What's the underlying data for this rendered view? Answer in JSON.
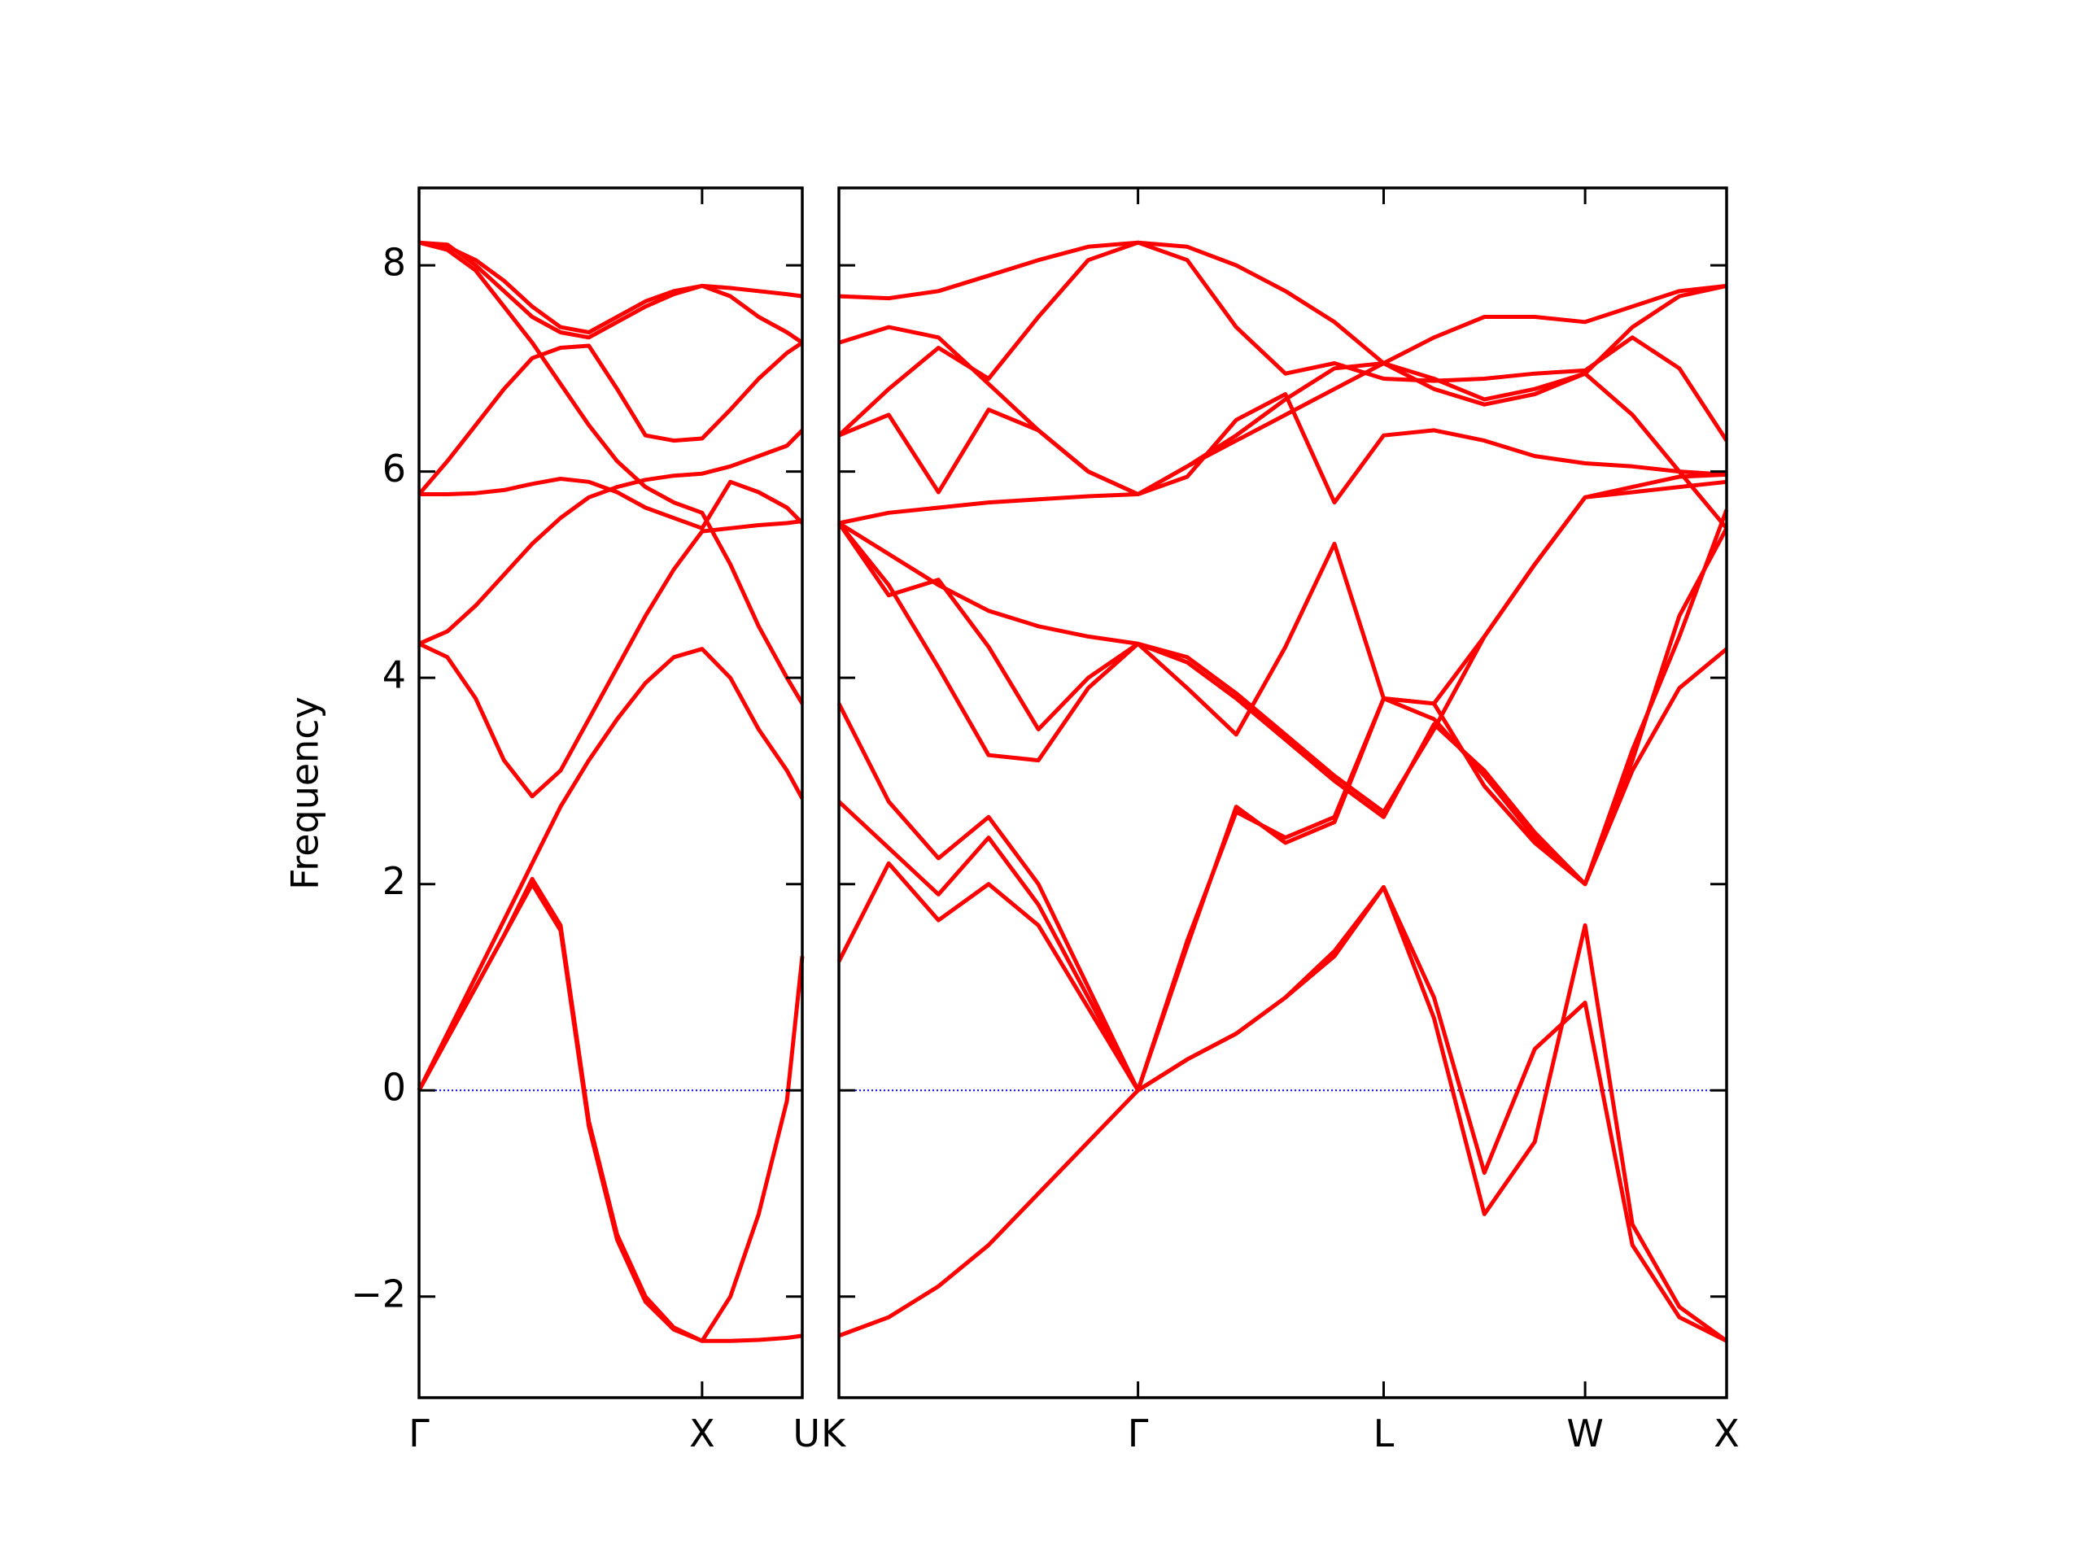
{
  "chart_data": [
    {
      "type": "line",
      "ylabel": "Frequency",
      "color": "#ff0000",
      "hline": 0,
      "hline_color": "#0000ff",
      "xlim": [
        0,
        1.354
      ],
      "xticks": [
        {
          "value": 0,
          "label": "Γ"
        },
        {
          "value": 1,
          "label": "X"
        },
        {
          "value": 1.354,
          "label": "U"
        }
      ],
      "ylim": [
        -2.98,
        8.75
      ],
      "yticks": [
        {
          "value": -2,
          "label": "−2"
        },
        0,
        2,
        4,
        6,
        8
      ],
      "x": [
        0,
        0.1,
        0.2,
        0.3,
        0.4,
        0.5,
        0.6,
        0.7,
        0.8,
        0.9,
        1.0,
        1.1,
        1.2,
        1.3,
        1.354
      ],
      "series": [
        {
          "values": [
            0,
            0.5,
            1.0,
            1.5,
            2.05,
            1.6,
            -0.3,
            -1.4,
            -2.0,
            -2.3,
            -2.43,
            -2.43,
            -2.42,
            -2.4,
            -2.38
          ]
        },
        {
          "values": [
            0,
            0.5,
            1.0,
            1.5,
            2.0,
            1.55,
            -0.35,
            -1.45,
            -2.05,
            -2.32,
            -2.43,
            -2.0,
            -1.2,
            -0.1,
            1.3
          ]
        },
        {
          "values": [
            0,
            0.55,
            1.1,
            1.65,
            2.2,
            2.75,
            3.2,
            3.6,
            3.95,
            4.2,
            4.28,
            4.0,
            3.5,
            3.1,
            2.83
          ]
        },
        {
          "values": [
            4.33,
            4.2,
            3.8,
            3.2,
            2.85,
            3.1,
            3.6,
            4.1,
            4.6,
            5.05,
            5.42,
            5.45,
            5.48,
            5.5,
            5.52
          ]
        },
        {
          "values": [
            4.33,
            4.45,
            4.7,
            5.0,
            5.3,
            5.55,
            5.75,
            5.85,
            5.92,
            5.96,
            5.98,
            6.05,
            6.15,
            6.25,
            6.4
          ]
        },
        {
          "values": [
            5.78,
            5.78,
            5.79,
            5.82,
            5.88,
            5.93,
            5.9,
            5.8,
            5.65,
            5.55,
            5.45,
            5.9,
            5.8,
            5.65,
            5.5
          ]
        },
        {
          "values": [
            5.78,
            6.1,
            6.45,
            6.8,
            7.1,
            7.2,
            7.22,
            6.8,
            6.35,
            6.3,
            6.32,
            6.6,
            6.9,
            7.15,
            7.25
          ]
        },
        {
          "values": [
            8.22,
            8.15,
            7.95,
            7.6,
            7.25,
            6.85,
            6.45,
            6.1,
            5.85,
            5.7,
            5.6,
            5.1,
            4.5,
            4.0,
            3.75
          ]
        },
        {
          "values": [
            8.22,
            8.18,
            8.05,
            7.85,
            7.6,
            7.4,
            7.35,
            7.5,
            7.65,
            7.75,
            7.8,
            7.78,
            7.75,
            7.72,
            7.7
          ]
        },
        {
          "values": [
            8.22,
            8.2,
            8.0,
            7.75,
            7.5,
            7.35,
            7.3,
            7.45,
            7.6,
            7.72,
            7.8,
            7.7,
            7.5,
            7.35,
            7.25
          ]
        }
      ]
    },
    {
      "type": "line",
      "color": "#ff0000",
      "hline": 0,
      "hline_color": "#0000ff",
      "xlim": [
        1.354,
        4.491
      ],
      "xticks": [
        {
          "value": 1.354,
          "label": "K"
        },
        {
          "value": 2.411,
          "label": "Γ"
        },
        {
          "value": 3.279,
          "label": "L"
        },
        {
          "value": 3.991,
          "label": "W"
        },
        {
          "value": 4.491,
          "label": "X"
        }
      ],
      "ylim": [
        -2.98,
        8.75
      ],
      "x": [
        1.354,
        1.53,
        1.706,
        1.883,
        2.059,
        2.235,
        2.411,
        2.585,
        2.758,
        2.932,
        3.105,
        3.279,
        3.457,
        3.635,
        3.813,
        3.991,
        4.158,
        4.324,
        4.491
      ],
      "series": [
        {
          "values": [
            -2.38,
            -2.2,
            -1.9,
            -1.5,
            -1.0,
            -0.5,
            0,
            0.3,
            0.55,
            0.9,
            1.3,
            1.97,
            0.7,
            -1.2,
            -0.5,
            1.6,
            -1.3,
            -2.1,
            -2.43
          ]
        },
        {
          "values": [
            1.25,
            2.2,
            1.65,
            2.0,
            1.6,
            0.8,
            0,
            0.3,
            0.55,
            0.9,
            1.35,
            1.97,
            0.9,
            -0.8,
            0.4,
            0.85,
            -1.5,
            -2.2,
            -2.43
          ]
        },
        {
          "values": [
            2.8,
            2.35,
            1.9,
            2.45,
            1.8,
            0.9,
            0,
            1.4,
            2.75,
            2.4,
            2.6,
            3.8,
            3.75,
            2.95,
            2.4,
            2.0,
            3.1,
            3.9,
            4.28
          ]
        },
        {
          "values": [
            3.75,
            2.8,
            2.25,
            2.65,
            2.0,
            1.0,
            0,
            1.45,
            2.7,
            2.45,
            2.65,
            3.8,
            3.6,
            3.05,
            2.45,
            2.0,
            3.2,
            4.6,
            5.45
          ]
        },
        {
          "values": [
            5.5,
            4.9,
            4.1,
            3.25,
            3.2,
            3.9,
            4.33,
            3.9,
            3.45,
            4.3,
            5.3,
            3.8,
            3.75,
            4.4,
            5.1,
            5.75,
            5.85,
            5.95,
            5.97
          ]
        },
        {
          "values": [
            5.5,
            4.8,
            4.95,
            4.3,
            3.5,
            4.0,
            4.33,
            4.15,
            3.8,
            3.4,
            3.0,
            2.65,
            3.55,
            3.1,
            2.5,
            2.0,
            3.3,
            4.4,
            5.63
          ]
        },
        {
          "values": [
            5.5,
            5.2,
            4.9,
            4.65,
            4.5,
            4.4,
            4.33,
            4.2,
            3.85,
            3.45,
            3.05,
            2.7,
            3.5,
            4.4,
            5.1,
            5.75,
            5.8,
            5.85,
            5.9
          ]
        },
        {
          "values": [
            5.5,
            5.6,
            5.65,
            5.7,
            5.73,
            5.76,
            5.78,
            5.95,
            6.5,
            6.75,
            5.7,
            6.35,
            6.4,
            6.3,
            6.15,
            6.08,
            6.05,
            6.0,
            5.97
          ]
        },
        {
          "values": [
            6.35,
            6.55,
            5.8,
            6.6,
            6.4,
            6.0,
            5.78,
            6.05,
            6.3,
            6.55,
            6.8,
            7.05,
            6.9,
            6.7,
            6.8,
            6.95,
            6.55,
            6.0,
            5.45
          ]
        },
        {
          "values": [
            6.35,
            6.8,
            7.2,
            6.9,
            7.5,
            8.05,
            8.22,
            8.05,
            7.4,
            6.95,
            7.05,
            6.9,
            6.88,
            6.9,
            6.95,
            6.98,
            7.3,
            7.0,
            6.3
          ]
        },
        {
          "values": [
            7.25,
            7.4,
            7.3,
            6.85,
            6.4,
            6.0,
            5.78,
            6.05,
            6.35,
            6.7,
            7.0,
            7.05,
            6.8,
            6.65,
            6.75,
            6.95,
            7.4,
            7.7,
            7.8
          ]
        },
        {
          "values": [
            7.7,
            7.68,
            7.75,
            7.9,
            8.05,
            8.18,
            8.22,
            8.18,
            8.0,
            7.75,
            7.45,
            7.05,
            7.3,
            7.5,
            7.5,
            7.45,
            7.6,
            7.75,
            7.8
          ]
        }
      ]
    }
  ]
}
